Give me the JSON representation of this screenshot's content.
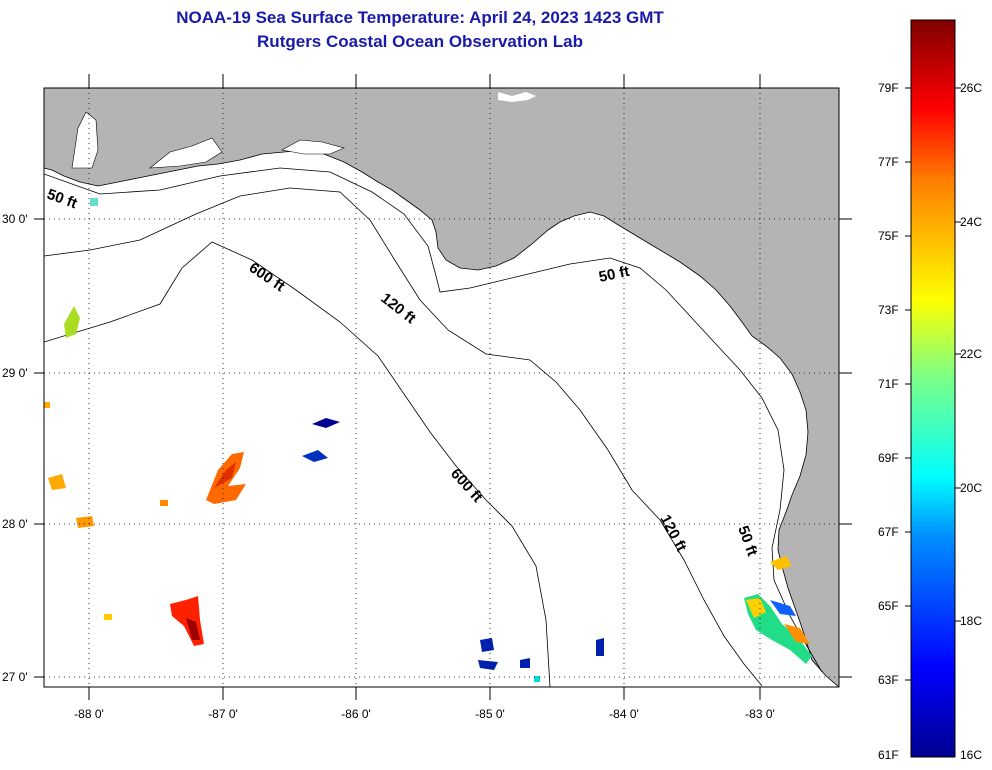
{
  "header": {
    "title": "NOAA-19 Sea Surface Temperature:  April 24, 2023 1423 GMT",
    "subtitle": "Rutgers Coastal Ocean Observation Lab"
  },
  "axes": {
    "lon_ticks": [
      "-88 0'",
      "-87 0'",
      "-86 0'",
      "-85 0'",
      "-84 0'",
      "-83 0'"
    ],
    "lat_ticks": [
      "30 0'",
      "29 0'",
      "28 0'",
      "27 0'"
    ]
  },
  "contours": {
    "c50_west": "50 ft",
    "c50_east": "50 ft",
    "c50_south": "50 ft",
    "c120_north": "120 ft",
    "c120_south": "120 ft",
    "c600_north": "600 ft",
    "c600_south": "600 ft"
  },
  "colorbar": {
    "fahrenheit": [
      "79F",
      "77F",
      "75F",
      "73F",
      "71F",
      "69F",
      "67F",
      "65F",
      "63F",
      "61F"
    ],
    "celsius": [
      "26C",
      "24C",
      "22C",
      "20C",
      "18C",
      "16C"
    ]
  },
  "colors": {
    "land": "#b4b4b4",
    "title": "#1a1aa8"
  }
}
